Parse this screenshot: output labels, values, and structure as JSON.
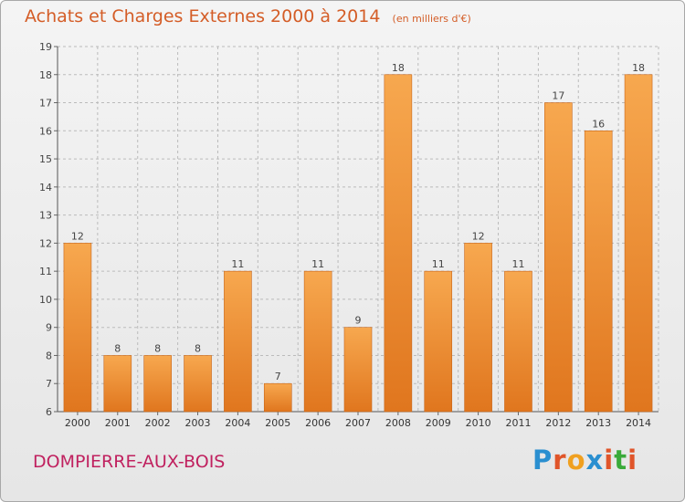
{
  "header": {
    "title": "Achats et Charges Externes 2000 à 2014",
    "unit": "(en milliers d'€)"
  },
  "footer": {
    "commune": "DOMPIERRE-AUX-BOIS",
    "brand_letters": [
      "P",
      "r",
      "o",
      "x",
      "i",
      "t",
      "i"
    ],
    "brand_colors": [
      "#2a8fd0",
      "#e0552a",
      "#f0a020",
      "#2a8fd0",
      "#e0552a",
      "#3aaa3a",
      "#e0552a"
    ]
  },
  "colors": {
    "bar_top": "#f7a84f",
    "bar_bottom": "#e0761e",
    "bar_edge": "#c8661a",
    "title": "#d45d27",
    "commune": "#c0215f",
    "grid": "#bbbbbb"
  },
  "chart_data": {
    "type": "bar",
    "categories": [
      "2000",
      "2001",
      "2002",
      "2003",
      "2004",
      "2005",
      "2006",
      "2007",
      "2008",
      "2009",
      "2010",
      "2011",
      "2012",
      "2013",
      "2014"
    ],
    "values": [
      12,
      8,
      8,
      8,
      11,
      7,
      11,
      9,
      18,
      11,
      12,
      11,
      17,
      16,
      18
    ],
    "ylim": [
      6,
      19
    ],
    "yticks": [
      6,
      7,
      8,
      9,
      10,
      11,
      12,
      13,
      14,
      15,
      16,
      17,
      18,
      19
    ],
    "xlabel": "",
    "ylabel": "",
    "grid": true,
    "data_labels": true
  }
}
